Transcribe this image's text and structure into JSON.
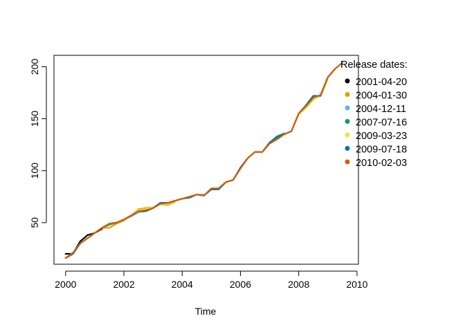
{
  "chart_data": {
    "type": "line",
    "title": "",
    "xlabel": "Time",
    "ylabel": "",
    "xlim": [
      1999.6,
      2010.05
    ],
    "ylim": [
      10.0,
      211.0
    ],
    "xticks": [
      2000,
      2002,
      2004,
      2006,
      2008,
      2010
    ],
    "yticks": [
      50,
      100,
      150,
      200
    ],
    "grid": false,
    "legend": {
      "title": "Release dates:",
      "position": "top-right"
    },
    "series": [
      {
        "name": "2001-04-20",
        "color": "#000000",
        "x": [
          2000.0,
          2000.25,
          2000.5,
          2000.75,
          2001.0,
          2001.25
        ],
        "y": [
          20,
          20,
          32,
          38,
          40,
          44
        ]
      },
      {
        "name": "2004-01-30",
        "color": "#E69F00",
        "x": [
          2000.0,
          2000.25,
          2000.5,
          2000.75,
          2001.0,
          2001.25,
          2001.5,
          2001.75,
          2002.0,
          2002.25,
          2002.5,
          2002.75,
          2003.0,
          2003.25,
          2003.5,
          2003.75
        ],
        "y": [
          16,
          20,
          30,
          35,
          40,
          45,
          45,
          49,
          52,
          57,
          63,
          64,
          65,
          68,
          67,
          70
        ]
      },
      {
        "name": "2004-12-11",
        "color": "#56B4E9",
        "x": [
          2000.0,
          2000.25,
          2000.5,
          2000.75,
          2001.0,
          2001.25,
          2001.5,
          2001.75,
          2002.0,
          2002.25,
          2002.5,
          2002.75,
          2003.0,
          2003.25,
          2003.5,
          2003.75,
          2004.0,
          2004.25,
          2004.5,
          2004.75
        ],
        "y": [
          16,
          20,
          30,
          35,
          40,
          45,
          49,
          50,
          53,
          56,
          60,
          61,
          64,
          69,
          69,
          71,
          73,
          74,
          77,
          77
        ]
      },
      {
        "name": "2007-07-16",
        "color": "#009E73",
        "x": [
          2000.0,
          2000.25,
          2000.5,
          2000.75,
          2001.0,
          2001.25,
          2001.5,
          2001.75,
          2002.0,
          2002.25,
          2002.5,
          2002.75,
          2003.0,
          2003.25,
          2003.5,
          2003.75,
          2004.0,
          2004.25,
          2004.5,
          2004.75,
          2005.0,
          2005.25,
          2005.5,
          2005.75,
          2006.0,
          2006.25,
          2006.5,
          2006.75,
          2007.0,
          2007.25,
          2007.5
        ],
        "y": [
          16,
          20,
          30,
          35,
          40,
          45,
          48,
          50,
          53,
          57,
          61,
          61,
          64,
          69,
          69,
          71,
          73,
          74,
          77,
          76,
          82,
          82,
          89,
          91,
          103,
          112,
          118,
          118,
          127,
          133,
          136
        ]
      },
      {
        "name": "2009-03-23",
        "color": "#F0E442",
        "x": [
          2000.0,
          2000.25,
          2000.5,
          2000.75,
          2001.0,
          2001.25,
          2001.5,
          2001.75,
          2002.0,
          2002.25,
          2002.5,
          2002.75,
          2003.0,
          2003.25,
          2003.5,
          2003.75,
          2004.0,
          2004.25,
          2004.5,
          2004.75,
          2005.0,
          2005.25,
          2005.5,
          2005.75,
          2006.0,
          2006.25,
          2006.5,
          2006.75,
          2007.0,
          2007.25,
          2007.5,
          2007.75,
          2008.0,
          2008.25,
          2008.5,
          2008.75,
          2009.0
        ],
        "y": [
          16,
          20,
          30,
          35,
          40,
          45,
          49,
          50,
          53,
          57,
          62,
          63,
          65,
          68,
          68,
          71,
          73,
          74,
          77,
          76,
          82,
          83,
          89,
          91,
          103,
          112,
          118,
          118,
          127,
          131,
          135,
          138,
          154,
          160,
          168,
          172,
          188
        ]
      },
      {
        "name": "2009-07-18",
        "color": "#0072B2",
        "x": [
          2000.0,
          2000.25,
          2000.5,
          2000.75,
          2001.0,
          2001.25,
          2001.5,
          2001.75,
          2002.0,
          2002.25,
          2002.5,
          2002.75,
          2003.0,
          2003.25,
          2003.5,
          2003.75,
          2004.0,
          2004.25,
          2004.5,
          2004.75,
          2005.0,
          2005.25,
          2005.5,
          2005.75,
          2006.0,
          2006.25,
          2006.5,
          2006.75,
          2007.0,
          2007.25,
          2007.5,
          2007.75,
          2008.0,
          2008.25,
          2008.5,
          2008.75,
          2009.0,
          2009.25
        ],
        "y": [
          16,
          20,
          30,
          35,
          40,
          45,
          49,
          50,
          53,
          57,
          61,
          61,
          64,
          69,
          69,
          71,
          73,
          74,
          77,
          76,
          82,
          82,
          89,
          91,
          103,
          112,
          118,
          118,
          127,
          132,
          135,
          138,
          155,
          163,
          172,
          172,
          190,
          198
        ]
      },
      {
        "name": "2010-02-03",
        "color": "#D55E00",
        "x": [
          2000.0,
          2000.25,
          2000.5,
          2000.75,
          2001.0,
          2001.25,
          2001.5,
          2001.75,
          2002.0,
          2002.25,
          2002.5,
          2002.75,
          2003.0,
          2003.25,
          2003.5,
          2003.75,
          2004.0,
          2004.25,
          2004.5,
          2004.75,
          2005.0,
          2005.25,
          2005.5,
          2005.75,
          2006.0,
          2006.25,
          2006.5,
          2006.75,
          2007.0,
          2007.25,
          2007.5,
          2007.75,
          2008.0,
          2008.25,
          2008.5,
          2008.75,
          2009.0,
          2009.25,
          2009.5
        ],
        "y": [
          16,
          21,
          30,
          35,
          40,
          45,
          49,
          50,
          53,
          57,
          61,
          62,
          64,
          68,
          69,
          71,
          73,
          75,
          77,
          76,
          83,
          83,
          89,
          91,
          102,
          112,
          118,
          118,
          126,
          130,
          135,
          138,
          155,
          162,
          170,
          173,
          190,
          198,
          204
        ]
      }
    ]
  }
}
